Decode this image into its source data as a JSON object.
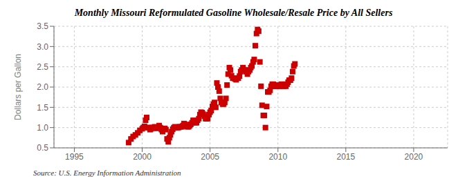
{
  "chart_data": {
    "type": "scatter",
    "title": "Monthly Missouri Reformulated Gasoline Wholesale/Resale Price by All Sellers",
    "ylabel": "Dollars per Gallon",
    "annotations": [
      "Source: U.S. Energy Information Administration"
    ],
    "color": "#CC0000",
    "marker": "square",
    "grid": true,
    "xlim": [
      1993.5,
      2022.5
    ],
    "ylim": [
      0.5,
      3.5
    ],
    "xticks": [
      1995,
      2000,
      2005,
      2010,
      2015,
      2020
    ],
    "yticks": [
      0.5,
      {
        "value": 1.0,
        "label": "1.0"
      },
      1.5,
      {
        "value": 2.0,
        "label": "2.0"
      },
      2.5,
      {
        "value": 3.0,
        "label": "3.0"
      },
      3.5
    ],
    "x": [
      1999.0,
      1999.17,
      1999.33,
      1999.5,
      1999.67,
      1999.83,
      2000.0,
      2000.08,
      2000.17,
      2000.25,
      2000.33,
      2000.42,
      2000.5,
      2000.58,
      2000.67,
      2000.75,
      2000.83,
      2000.92,
      2001.0,
      2001.08,
      2001.17,
      2001.25,
      2001.33,
      2001.42,
      2001.5,
      2001.58,
      2001.67,
      2001.75,
      2001.83,
      2001.92,
      2002.0,
      2002.08,
      2002.17,
      2002.25,
      2002.33,
      2002.42,
      2002.5,
      2002.58,
      2002.67,
      2002.75,
      2002.83,
      2002.92,
      2003.0,
      2003.08,
      2003.17,
      2003.25,
      2003.33,
      2003.42,
      2003.5,
      2003.58,
      2003.67,
      2003.75,
      2003.83,
      2003.92,
      2004.0,
      2004.08,
      2004.17,
      2004.25,
      2004.33,
      2004.42,
      2004.5,
      2004.58,
      2004.67,
      2004.75,
      2004.83,
      2004.92,
      2005.0,
      2005.08,
      2005.17,
      2005.25,
      2005.33,
      2005.42,
      2005.5,
      2005.58,
      2005.67,
      2005.75,
      2005.83,
      2005.92,
      2006.0,
      2006.08,
      2006.17,
      2006.25,
      2006.33,
      2006.42,
      2006.5,
      2006.58,
      2006.67,
      2006.75,
      2006.83,
      2006.92,
      2007.0,
      2007.08,
      2007.17,
      2007.25,
      2007.33,
      2007.42,
      2007.5,
      2007.58,
      2007.67,
      2007.75,
      2007.83,
      2007.92,
      2008.0,
      2008.08,
      2008.17,
      2008.25,
      2008.33,
      2008.42,
      2008.5,
      2008.58,
      2008.67,
      2008.75,
      2008.83,
      2008.92,
      2009.0,
      2009.08,
      2009.17,
      2009.25,
      2009.33,
      2009.42,
      2009.5,
      2009.58,
      2009.67,
      2009.75,
      2009.83,
      2009.92,
      2010.0,
      2010.08,
      2010.17,
      2010.25,
      2010.33,
      2010.42,
      2010.5,
      2010.58,
      2010.67,
      2010.75,
      2010.83,
      2010.92,
      2011.0,
      2011.08,
      2011.17,
      2011.25
    ],
    "values": [
      0.63,
      0.72,
      0.78,
      0.82,
      0.87,
      0.93,
      0.97,
      1.0,
      1.03,
      1.18,
      1.25,
      1.0,
      1.0,
      0.95,
      0.97,
      1.0,
      1.0,
      1.02,
      1.0,
      0.98,
      1.0,
      1.05,
      1.0,
      0.95,
      0.9,
      0.97,
      0.98,
      0.95,
      0.72,
      0.65,
      0.75,
      0.82,
      0.9,
      0.96,
      1.0,
      1.02,
      1.0,
      1.0,
      1.0,
      1.02,
      1.02,
      1.02,
      1.05,
      1.1,
      1.08,
      1.05,
      1.02,
      1.02,
      1.05,
      1.08,
      1.12,
      1.18,
      1.15,
      1.12,
      1.12,
      1.18,
      1.22,
      1.32,
      1.38,
      1.37,
      1.33,
      1.28,
      1.22,
      1.22,
      1.22,
      1.32,
      1.38,
      1.42,
      1.52,
      1.58,
      1.62,
      1.5,
      2.1,
      2.0,
      1.9,
      1.72,
      1.62,
      1.58,
      1.58,
      1.62,
      1.72,
      2.05,
      2.32,
      2.48,
      2.42,
      2.28,
      2.22,
      2.22,
      2.2,
      2.18,
      2.22,
      2.22,
      2.27,
      2.38,
      2.42,
      2.48,
      2.42,
      2.42,
      2.38,
      2.32,
      2.38,
      2.42,
      2.48,
      2.52,
      2.62,
      2.68,
      3.02,
      3.32,
      3.42,
      3.38,
      2.62,
      2.02,
      1.55,
      1.3,
      1.3,
      1.0,
      1.52,
      1.88,
      1.88,
      1.92,
      2.02,
      2.07,
      2.07,
      2.02,
      2.02,
      2.02,
      2.05,
      2.02,
      2.02,
      2.07,
      2.07,
      2.02,
      2.05,
      2.02,
      2.07,
      2.12,
      2.17,
      2.17,
      2.22,
      2.38,
      2.52,
      2.57
    ]
  }
}
